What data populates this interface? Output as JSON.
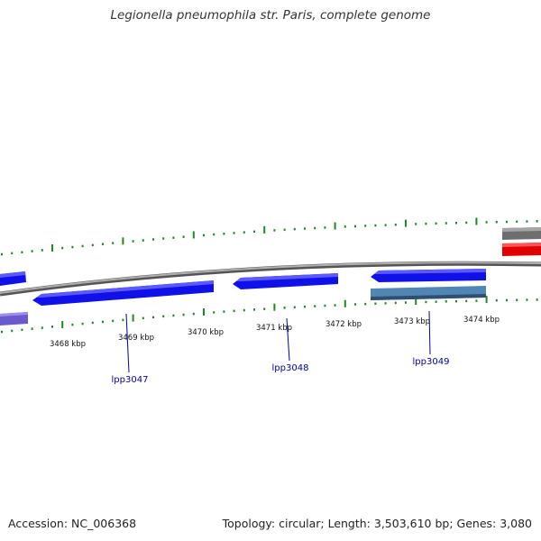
{
  "title": "Legionella pneumophila str. Paris, complete genome",
  "footer": {
    "accession": "Accession: NC_006368",
    "summary": "Topology: circular; Length: 3,503,610 bp; Genes: 3,080"
  },
  "colors": {
    "backbone": "#8c8c8c",
    "tick": "#1f8a1f",
    "gene_forward": "#1010e8",
    "gene_reverse": "#1010e8",
    "gene_other": "#4f86b4",
    "gene_partial": "#6a5acd",
    "gray_feature": "#777777",
    "red_feature": "#ee0000",
    "label": "#0000aa"
  },
  "scale_labels": [
    "3468 kbp",
    "3469 kbp",
    "3470 kbp",
    "3471 kbp",
    "3472 kbp",
    "3473 kbp",
    "3474 kbp"
  ],
  "gene_labels": [
    "lpp3047",
    "lpp3048",
    "lpp3049"
  ]
}
